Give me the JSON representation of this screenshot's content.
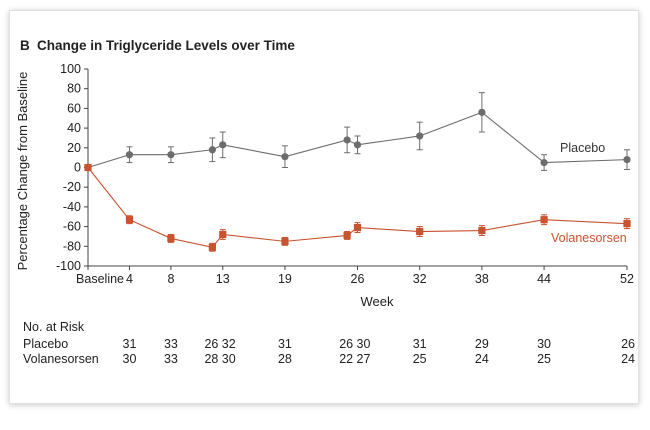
{
  "panel_letter": "B",
  "chart_data": {
    "type": "line",
    "title": "Change in Triglyceride Levels over Time",
    "xlabel": "Week",
    "ylabel": "Percentage Change from Baseline",
    "ylim": [
      -100,
      100
    ],
    "yticks": [
      100,
      80,
      60,
      40,
      20,
      0,
      -20,
      -40,
      -60,
      -80,
      -100
    ],
    "x_ticks": [
      0,
      4,
      8,
      13,
      19,
      26,
      32,
      38,
      44,
      52
    ],
    "x_tick_labels": [
      "Baseline",
      "4",
      "8",
      "13",
      "19",
      "26",
      "32",
      "38",
      "44",
      "52"
    ],
    "colors": {
      "Placebo": "#6d6d6d",
      "Volanesorsen": "#c8532f"
    },
    "series": [
      {
        "name": "Placebo",
        "x": [
          0,
          4,
          8,
          12,
          13,
          19,
          25,
          26,
          32,
          38,
          44,
          52
        ],
        "values": [
          0,
          13,
          13,
          18,
          23,
          11,
          28,
          23,
          32,
          56,
          5,
          8
        ],
        "error": [
          0,
          8,
          8,
          12,
          13,
          11,
          13,
          9,
          14,
          20,
          8,
          10
        ]
      },
      {
        "name": "Volanesorsen",
        "x": [
          0,
          4,
          8,
          12,
          13,
          19,
          25,
          26,
          32,
          38,
          44,
          52
        ],
        "values": [
          0,
          -53,
          -72,
          -81,
          -68,
          -75,
          -69,
          -61,
          -65,
          -64,
          -53,
          -57
        ],
        "error": [
          0,
          4,
          4,
          4,
          5,
          4,
          4,
          5,
          5,
          5,
          5,
          5
        ]
      }
    ]
  },
  "risk_table": {
    "header": "No. at Risk",
    "rows": [
      {
        "label": "Placebo",
        "counts": [
          {
            "week": 4,
            "value": "31"
          },
          {
            "week": 8,
            "value": "33"
          },
          {
            "week": 12,
            "value": "26"
          },
          {
            "week": 13,
            "value": "32"
          },
          {
            "week": 19,
            "value": "31"
          },
          {
            "week": 25,
            "value": "26"
          },
          {
            "week": 26,
            "value": "30"
          },
          {
            "week": 32,
            "value": "31"
          },
          {
            "week": 38,
            "value": "29"
          },
          {
            "week": 44,
            "value": "30"
          },
          {
            "week": 52,
            "value": "26"
          }
        ]
      },
      {
        "label": "Volanesorsen",
        "counts": [
          {
            "week": 4,
            "value": "30"
          },
          {
            "week": 8,
            "value": "33"
          },
          {
            "week": 12,
            "value": "28"
          },
          {
            "week": 13,
            "value": "30"
          },
          {
            "week": 19,
            "value": "28"
          },
          {
            "week": 25,
            "value": "22"
          },
          {
            "week": 26,
            "value": "27"
          },
          {
            "week": 32,
            "value": "25"
          },
          {
            "week": 38,
            "value": "24"
          },
          {
            "week": 44,
            "value": "25"
          },
          {
            "week": 52,
            "value": "24"
          }
        ]
      }
    ]
  }
}
